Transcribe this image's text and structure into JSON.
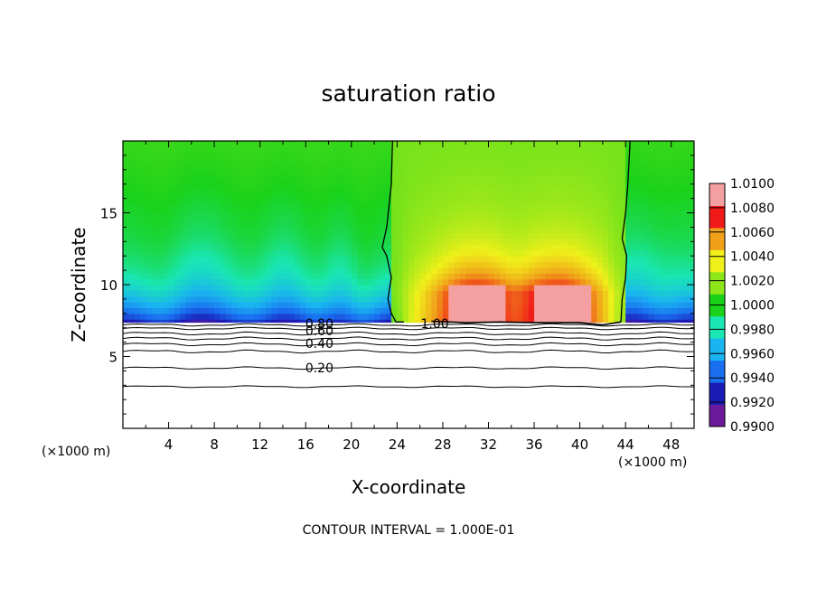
{
  "chart_data": {
    "type": "heatmap",
    "title": "saturation ratio",
    "xlabel": "X-coordinate",
    "ylabel": "Z-coordinate",
    "x_unit_label": "(×1000 m)",
    "x_unit_label_right": "(×1000 m)",
    "xlim": [
      0,
      50
    ],
    "ylim": [
      0,
      20
    ],
    "x_ticks": [
      "4",
      "8",
      "12",
      "16",
      "20",
      "24",
      "28",
      "32",
      "36",
      "40",
      "44",
      "48"
    ],
    "y_ticks": [
      "5",
      "10",
      "15"
    ],
    "contour_interval_label": "CONTOUR INTERVAL = 1.000E-01",
    "colorbar": {
      "min": 0.99,
      "max": 1.01,
      "ticks": [
        "0.9900",
        "0.9920",
        "0.9940",
        "0.9960",
        "0.9980",
        "1.0000",
        "1.0020",
        "1.0040",
        "1.0060",
        "1.0080",
        "1.0100"
      ],
      "colors": [
        "#6a1a9a",
        "#1a1ab4",
        "#1a6ef0",
        "#1ab4f0",
        "#1ae6b4",
        "#1ad21a",
        "#8ce61a",
        "#f0f01a",
        "#f0a01a",
        "#f01a1a",
        "#f5a0a0"
      ]
    },
    "contour_labels": [
      {
        "text": "0.80",
        "x": 17.2,
        "y": 7.3
      },
      {
        "text": "0.60",
        "x": 17.2,
        "y": 6.8
      },
      {
        "text": "0.40",
        "x": 17.2,
        "y": 5.9
      },
      {
        "text": "0.20",
        "x": 17.2,
        "y": 4.2
      },
      {
        "text": "1.00",
        "x": 27.3,
        "y": 7.3
      }
    ]
  }
}
